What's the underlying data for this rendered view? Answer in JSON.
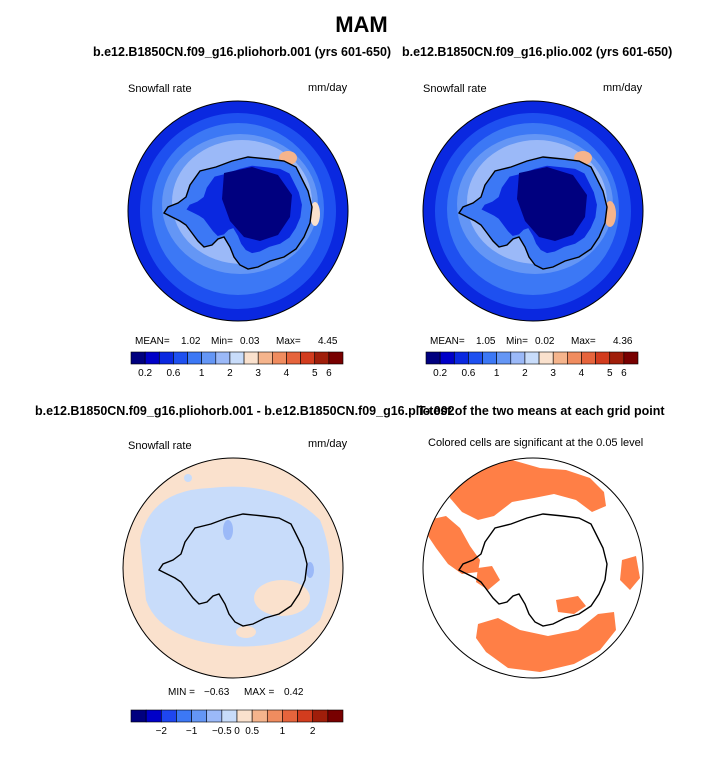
{
  "title": "MAM",
  "colors": {
    "seq": [
      "#00007f",
      "#0000c8",
      "#0a28e0",
      "#1e50f0",
      "#3c78f5",
      "#6496f5",
      "#9bb9f8",
      "#c8dcfa",
      "#fae1cd",
      "#f5b48c",
      "#f08c5f",
      "#e6643c",
      "#d23c1e",
      "#a01e0a",
      "#780000"
    ],
    "diff": [
      "#00007f",
      "#0000c8",
      "#1e46f0",
      "#3c78f5",
      "#6496f5",
      "#9bb9f8",
      "#c8dcfa",
      "#fae1cd",
      "#f5b48c",
      "#f08c5f",
      "#e6643c",
      "#d23c1e",
      "#a01e0a",
      "#780000"
    ],
    "sig": "#ff7f46",
    "coast": "#000000"
  },
  "panels": {
    "p1": {
      "title": "b.e12.B1850CN.f09_g16.pliohorb.001 (yrs 601-650)",
      "left_label": "Snowfall rate",
      "right_label": "mm/day",
      "stats": {
        "mean_label": "MEAN=",
        "mean": "1.02",
        "min_label": "Min=",
        "min": "0.03",
        "max_label": "Max=",
        "max": "4.45"
      }
    },
    "p2": {
      "title": "b.e12.B1850CN.f09_g16.plio.002 (yrs 601-650)",
      "left_label": "Snowfall rate",
      "right_label": "mm/day",
      "stats": {
        "mean_label": "MEAN=",
        "mean": "1.05",
        "min_label": "Min=",
        "min": "0.02",
        "max_label": "Max=",
        "max": "4.36"
      }
    },
    "p3": {
      "title": "b.e12.B1850CN.f09_g16.pliohorb.001 - b.e12.B1850CN.f09_g16.plio.002",
      "left_label": "Snowfall rate",
      "right_label": "mm/day",
      "stats": {
        "min_label": "MIN =",
        "min": "−0.63",
        "max_label": "MAX =",
        "max": "0.42"
      }
    },
    "p4": {
      "title": "T-test of the two means at each grid point",
      "subtitle": "Colored cells are significant at the 0.05 level"
    }
  },
  "chart_data": [
    {
      "type": "heatmap",
      "title": "b.e12.B1850CN.f09_g16.pliohorb.001 (yrs 601-650)",
      "variable": "Snowfall rate",
      "units": "mm/day",
      "projection": "south polar stereographic",
      "colorbar_ticks": [
        "0.2",
        "0.6",
        "1",
        "2",
        "3",
        "4",
        "5",
        "6"
      ],
      "levels": [
        0.1,
        0.2,
        0.4,
        0.6,
        0.8,
        1,
        1.5,
        2,
        2.5,
        3,
        3.5,
        4,
        5,
        6
      ],
      "mean": 1.02,
      "min": 0.03,
      "max": 4.45
    },
    {
      "type": "heatmap",
      "title": "b.e12.B1850CN.f09_g16.plio.002 (yrs 601-650)",
      "variable": "Snowfall rate",
      "units": "mm/day",
      "projection": "south polar stereographic",
      "colorbar_ticks": [
        "0.2",
        "0.6",
        "1",
        "2",
        "3",
        "4",
        "5",
        "6"
      ],
      "levels": [
        0.1,
        0.2,
        0.4,
        0.6,
        0.8,
        1,
        1.5,
        2,
        2.5,
        3,
        3.5,
        4,
        5,
        6
      ],
      "mean": 1.05,
      "min": 0.02,
      "max": 4.36
    },
    {
      "type": "heatmap",
      "title": "b.e12.B1850CN.f09_g16.pliohorb.001 - b.e12.B1850CN.f09_g16.plio.002",
      "variable": "Snowfall rate",
      "units": "mm/day",
      "projection": "south polar stereographic",
      "colorbar_ticks": [
        "−2",
        "−1",
        "−0.5",
        "0",
        "0.5",
        "1",
        "2"
      ],
      "levels": [
        -3,
        -2,
        -1.5,
        -1,
        -0.75,
        -0.5,
        -0.25,
        0,
        0.25,
        0.5,
        0.75,
        1,
        1.5,
        2,
        3
      ],
      "min": -0.63,
      "max": 0.42
    },
    {
      "type": "heatmap",
      "title": "T-test of the two means at each grid point",
      "subtitle": "Colored cells are significant at the 0.05 level",
      "significance_level": 0.05
    }
  ]
}
